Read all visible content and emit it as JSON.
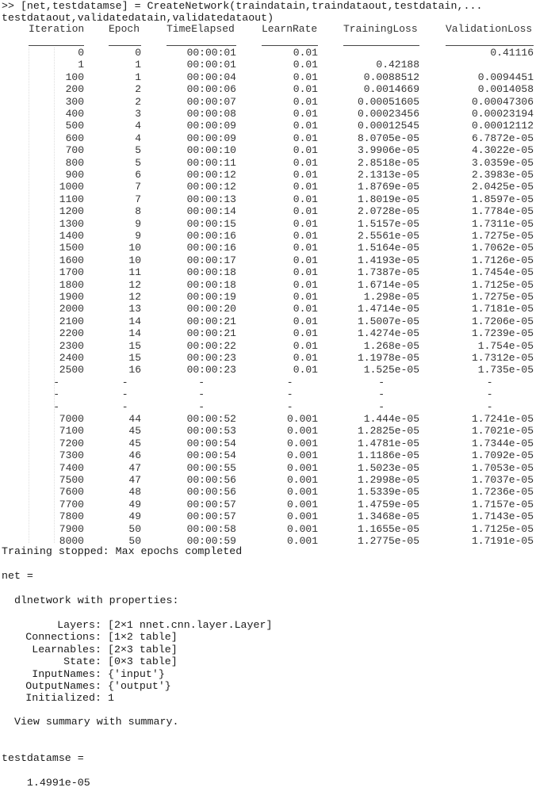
{
  "command": {
    "line1": ">> [net,testdatamse] = CreateNetwork(traindatain,traindataout,testdatain,...",
    "line2": "testdataout,validatedatain,validatedataout)"
  },
  "table": {
    "headers": [
      "Iteration",
      "Epoch",
      "TimeElapsed",
      "LearnRate",
      "TrainingLoss",
      "ValidationLoss"
    ],
    "rows": [
      [
        "0",
        "0",
        "00:00:01",
        "0.01",
        "",
        "0.41116"
      ],
      [
        "1",
        "1",
        "00:00:01",
        "0.01",
        "0.42188",
        ""
      ],
      [
        "100",
        "1",
        "00:00:04",
        "0.01",
        "0.0088512",
        "0.0094451"
      ],
      [
        "200",
        "2",
        "00:00:06",
        "0.01",
        "0.0014669",
        "0.0014058"
      ],
      [
        "300",
        "2",
        "00:00:07",
        "0.01",
        "0.00051605",
        "0.00047306"
      ],
      [
        "400",
        "3",
        "00:00:08",
        "0.01",
        "0.00023456",
        "0.00023194"
      ],
      [
        "500",
        "4",
        "00:00:09",
        "0.01",
        "0.00012545",
        "0.00012112"
      ],
      [
        "600",
        "4",
        "00:00:09",
        "0.01",
        "8.0705e-05",
        "6.7872e-05"
      ],
      [
        "700",
        "5",
        "00:00:10",
        "0.01",
        "3.9906e-05",
        "4.3022e-05"
      ],
      [
        "800",
        "5",
        "00:00:11",
        "0.01",
        "2.8518e-05",
        "3.0359e-05"
      ],
      [
        "900",
        "6",
        "00:00:12",
        "0.01",
        "2.1313e-05",
        "2.3983e-05"
      ],
      [
        "1000",
        "7",
        "00:00:12",
        "0.01",
        "1.8769e-05",
        "2.0425e-05"
      ],
      [
        "1100",
        "7",
        "00:00:13",
        "0.01",
        "1.8019e-05",
        "1.8597e-05"
      ],
      [
        "1200",
        "8",
        "00:00:14",
        "0.01",
        "2.0728e-05",
        "1.7784e-05"
      ],
      [
        "1300",
        "9",
        "00:00:15",
        "0.01",
        "1.5157e-05",
        "1.7311e-05"
      ],
      [
        "1400",
        "9",
        "00:00:16",
        "0.01",
        "2.5561e-05",
        "1.7275e-05"
      ],
      [
        "1500",
        "10",
        "00:00:16",
        "0.01",
        "1.5164e-05",
        "1.7062e-05"
      ],
      [
        "1600",
        "10",
        "00:00:17",
        "0.01",
        "1.4193e-05",
        "1.7126e-05"
      ],
      [
        "1700",
        "11",
        "00:00:18",
        "0.01",
        "1.7387e-05",
        "1.7454e-05"
      ],
      [
        "1800",
        "12",
        "00:00:18",
        "0.01",
        "1.6714e-05",
        "1.7125e-05"
      ],
      [
        "1900",
        "12",
        "00:00:19",
        "0.01",
        "1.298e-05",
        "1.7275e-05"
      ],
      [
        "2000",
        "13",
        "00:00:20",
        "0.01",
        "1.4714e-05",
        "1.7181e-05"
      ],
      [
        "2100",
        "14",
        "00:00:21",
        "0.01",
        "1.5007e-05",
        "1.7206e-05"
      ],
      [
        "2200",
        "14",
        "00:00:21",
        "0.01",
        "1.4274e-05",
        "1.7239e-05"
      ],
      [
        "2300",
        "15",
        "00:00:22",
        "0.01",
        "1.268e-05",
        "1.754e-05"
      ],
      [
        "2400",
        "15",
        "00:00:23",
        "0.01",
        "1.1978e-05",
        "1.7312e-05"
      ],
      [
        "2500",
        "16",
        "00:00:23",
        "0.01",
        "1.525e-05",
        "1.735e-05"
      ],
      [
        "-",
        "-",
        "-",
        "-",
        "-",
        "-"
      ],
      [
        "-",
        "-",
        "-",
        "-",
        "-",
        "-"
      ],
      [
        "-",
        "-",
        "-",
        "-",
        "-",
        "-"
      ],
      [
        "7000",
        "44",
        "00:00:52",
        "0.001",
        "1.444e-05",
        "1.7241e-05"
      ],
      [
        "7100",
        "45",
        "00:00:53",
        "0.001",
        "1.2825e-05",
        "1.7021e-05"
      ],
      [
        "7200",
        "45",
        "00:00:54",
        "0.001",
        "1.4781e-05",
        "1.7344e-05"
      ],
      [
        "7300",
        "46",
        "00:00:54",
        "0.001",
        "1.1186e-05",
        "1.7092e-05"
      ],
      [
        "7400",
        "47",
        "00:00:55",
        "0.001",
        "1.5023e-05",
        "1.7053e-05"
      ],
      [
        "7500",
        "47",
        "00:00:56",
        "0.001",
        "1.2998e-05",
        "1.7037e-05"
      ],
      [
        "7600",
        "48",
        "00:00:56",
        "0.001",
        "1.5339e-05",
        "1.7236e-05"
      ],
      [
        "7700",
        "49",
        "00:00:57",
        "0.001",
        "1.4759e-05",
        "1.7157e-05"
      ],
      [
        "7800",
        "49",
        "00:00:57",
        "0.001",
        "1.3468e-05",
        "1.7143e-05"
      ],
      [
        "7900",
        "50",
        "00:00:58",
        "0.001",
        "1.1655e-05",
        "1.7125e-05"
      ],
      [
        "8000",
        "50",
        "00:00:59",
        "0.001",
        "1.2775e-05",
        "1.7191e-05"
      ]
    ]
  },
  "output": {
    "stopped": "Training stopped: Max epochs completed",
    "net_assign": "net =",
    "net_type": "  dlnetwork with properties:",
    "properties": [
      {
        "label": "Layers:",
        "value": "[2×1 nnet.cnn.layer.Layer]"
      },
      {
        "label": "Connections:",
        "value": "[1×2 table]"
      },
      {
        "label": "Learnables:",
        "value": "[2×3 table]"
      },
      {
        "label": "State:",
        "value": "[0×3 table]"
      },
      {
        "label": "InputNames:",
        "value": "{'input'}"
      },
      {
        "label": "OutputNames:",
        "value": "{'output'}"
      },
      {
        "label": "Initialized:",
        "value": "1"
      }
    ],
    "summary_hint": "  View summary with summary.",
    "mse_assign": "testdatamse =",
    "mse_value": "    1.4991e-05"
  }
}
